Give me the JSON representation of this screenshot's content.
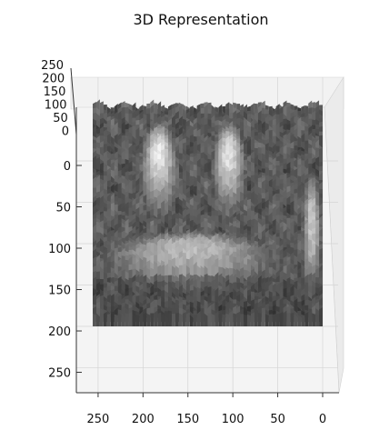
{
  "chart_data": {
    "type": "surface3d",
    "title": "3D Representation",
    "colormap": "gray",
    "grid": true,
    "xlabel": "",
    "ylabel": "",
    "zlabel": "",
    "xlim": [
      0,
      256
    ],
    "ylim": [
      0,
      256
    ],
    "zlim": [
      0,
      256
    ],
    "x_ticks": [
      "250",
      "200",
      "150",
      "100",
      "50",
      "0"
    ],
    "y_ticks": [
      "0",
      "50",
      "100",
      "150",
      "200",
      "250"
    ],
    "z_ticks": [
      "250",
      "200",
      "150",
      "100",
      "50",
      "0"
    ],
    "surface_regions": [
      {
        "name": "upper-left-blob",
        "x": [
          160,
          200
        ],
        "y": [
          20,
          130
        ],
        "z": 235
      },
      {
        "name": "upper-right-blob",
        "x": [
          85,
          120
        ],
        "y": [
          20,
          130
        ],
        "z": 230
      },
      {
        "name": "lower-arc",
        "x": [
          40,
          250
        ],
        "y": [
          150,
          220
        ],
        "z": 180
      },
      {
        "name": "right-column",
        "x": [
          0,
          20
        ],
        "y": [
          80,
          230
        ],
        "z": 200
      }
    ]
  }
}
